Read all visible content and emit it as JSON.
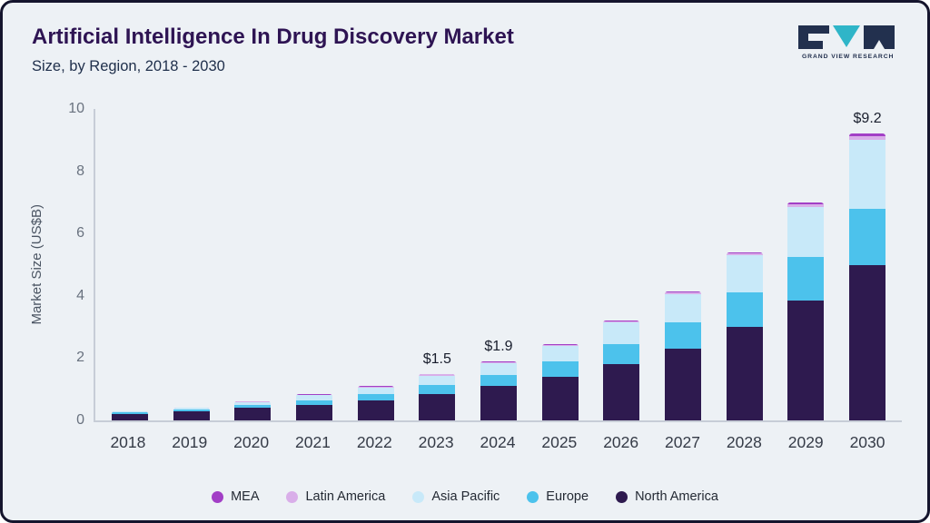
{
  "header": {
    "title": "Artificial Intelligence In Drug Discovery Market",
    "subtitle": "Size, by Region, 2018 - 2030"
  },
  "logo": {
    "brand": "GRAND VIEW RESEARCH"
  },
  "chart_data": {
    "type": "bar",
    "stacked": true,
    "title": "Artificial Intelligence In Drug Discovery Market Size, by Region, 2018 - 2030",
    "xlabel": "",
    "ylabel": "Market Size (US$B)",
    "ylim": [
      0,
      10
    ],
    "yticks": [
      0,
      2,
      4,
      6,
      8,
      10
    ],
    "grid": false,
    "legend_position": "bottom",
    "categories": [
      "2018",
      "2019",
      "2020",
      "2021",
      "2022",
      "2023",
      "2024",
      "2025",
      "2026",
      "2027",
      "2028",
      "2029",
      "2030"
    ],
    "series": [
      {
        "name": "North America",
        "color": "#2e1a4f",
        "values": [
          0.2,
          0.28,
          0.4,
          0.5,
          0.65,
          0.85,
          1.1,
          1.4,
          1.8,
          2.3,
          3.0,
          3.85,
          5.0
        ]
      },
      {
        "name": "Europe",
        "color": "#4cc2ec",
        "values": [
          0.05,
          0.06,
          0.09,
          0.15,
          0.2,
          0.28,
          0.36,
          0.5,
          0.65,
          0.85,
          1.1,
          1.4,
          1.8
        ]
      },
      {
        "name": "Asia Pacific",
        "color": "#c8e9f9",
        "values": [
          0.04,
          0.06,
          0.1,
          0.16,
          0.21,
          0.31,
          0.39,
          0.5,
          0.7,
          0.9,
          1.2,
          1.6,
          2.2
        ]
      },
      {
        "name": "Latin America",
        "color": "#d9aee9",
        "values": [
          0.01,
          0.01,
          0.02,
          0.02,
          0.02,
          0.04,
          0.03,
          0.03,
          0.03,
          0.06,
          0.07,
          0.1,
          0.12
        ]
      },
      {
        "name": "MEA",
        "color": "#a23fc6",
        "values": [
          0.005,
          0.01,
          0.01,
          0.02,
          0.02,
          0.02,
          0.02,
          0.02,
          0.02,
          0.04,
          0.03,
          0.05,
          0.08
        ]
      }
    ],
    "annotations": {
      "2023": "$1.5",
      "2024": "$1.9",
      "2030": "$9.2"
    },
    "legend": [
      {
        "name": "MEA",
        "color": "#a23fc6"
      },
      {
        "name": "Latin America",
        "color": "#d9aee9"
      },
      {
        "name": "Asia Pacific",
        "color": "#c8e9f9"
      },
      {
        "name": "Europe",
        "color": "#4cc2ec"
      },
      {
        "name": "North America",
        "color": "#2e1a4f"
      }
    ]
  }
}
